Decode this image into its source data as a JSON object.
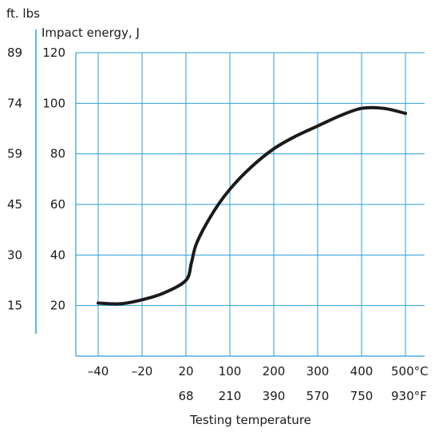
{
  "chart_data": {
    "type": "line",
    "title": "",
    "xlabel": "Testing temperature",
    "ylabel": "Impact energy, J",
    "secondary_ylabel": "ft. lbs",
    "x_unit_primary": "°C",
    "x_unit_secondary": "°F",
    "grid": true,
    "grid_color": "#2a9fd6",
    "line_color": "#1a1a1a",
    "x_ticks_primary": [
      "–40",
      "–20",
      "20",
      "100",
      "200",
      "300",
      "400",
      "500°C"
    ],
    "x_ticks_secondary": [
      "",
      "",
      "68",
      "210",
      "390",
      "570",
      "750",
      "930°F"
    ],
    "y_ticks": [
      "20",
      "40",
      "60",
      "80",
      "100",
      "120"
    ],
    "y_ticks_secondary": [
      "15",
      "30",
      "45",
      "59",
      "74",
      "89"
    ],
    "ylim": [
      0,
      120
    ],
    "x_axis_note": "x-axis spacing is categorical (equal spacing per tick index 0–7)",
    "series": [
      {
        "points": [
          {
            "x": -40,
            "y": 21.0
          },
          {
            "x": -30,
            "y": 20.7
          },
          {
            "x": -20,
            "y": 22.3
          },
          {
            "x": 0,
            "y": 25.0
          },
          {
            "x": 20,
            "y": 30.0
          },
          {
            "x": 30,
            "y": 37.0
          },
          {
            "x": 40,
            "y": 45.0
          },
          {
            "x": 70,
            "y": 57.0
          },
          {
            "x": 100,
            "y": 66.0
          },
          {
            "x": 150,
            "y": 75.0
          },
          {
            "x": 200,
            "y": 82.0
          },
          {
            "x": 250,
            "y": 87.0
          },
          {
            "x": 300,
            "y": 91.0
          },
          {
            "x": 350,
            "y": 95.0
          },
          {
            "x": 400,
            "y": 98.0
          },
          {
            "x": 450,
            "y": 98.0
          },
          {
            "x": 500,
            "y": 96.0
          }
        ]
      }
    ]
  }
}
